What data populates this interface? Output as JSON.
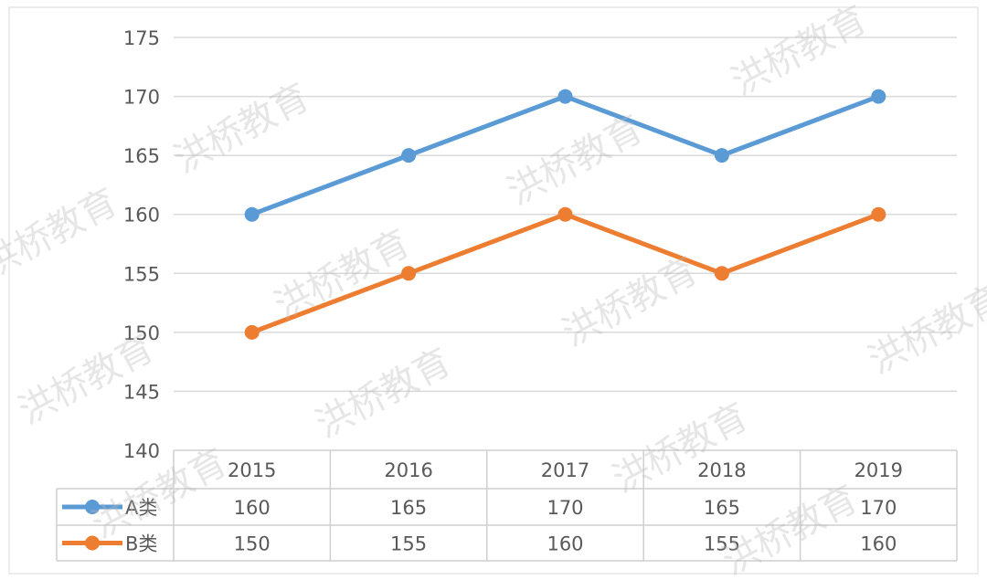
{
  "chart_data": {
    "type": "line",
    "title": "",
    "xlabel": "",
    "ylabel": "",
    "categories": [
      "2015",
      "2016",
      "2017",
      "2018",
      "2019"
    ],
    "ylim": [
      140,
      175
    ],
    "yticks": [
      140,
      145,
      150,
      155,
      160,
      165,
      170,
      175
    ],
    "grid": true,
    "legend": "data-table",
    "series": [
      {
        "name": "A类",
        "values": [
          160,
          165,
          170,
          165,
          170
        ],
        "color": "#5b9bd5"
      },
      {
        "name": "B类",
        "values": [
          150,
          155,
          160,
          155,
          160
        ],
        "color": "#ed7d31"
      }
    ]
  },
  "watermark": "洪桥教育",
  "colors": {
    "grid": "#d9d9d9",
    "text": "#595959",
    "table_border": "#cfcfcf"
  }
}
